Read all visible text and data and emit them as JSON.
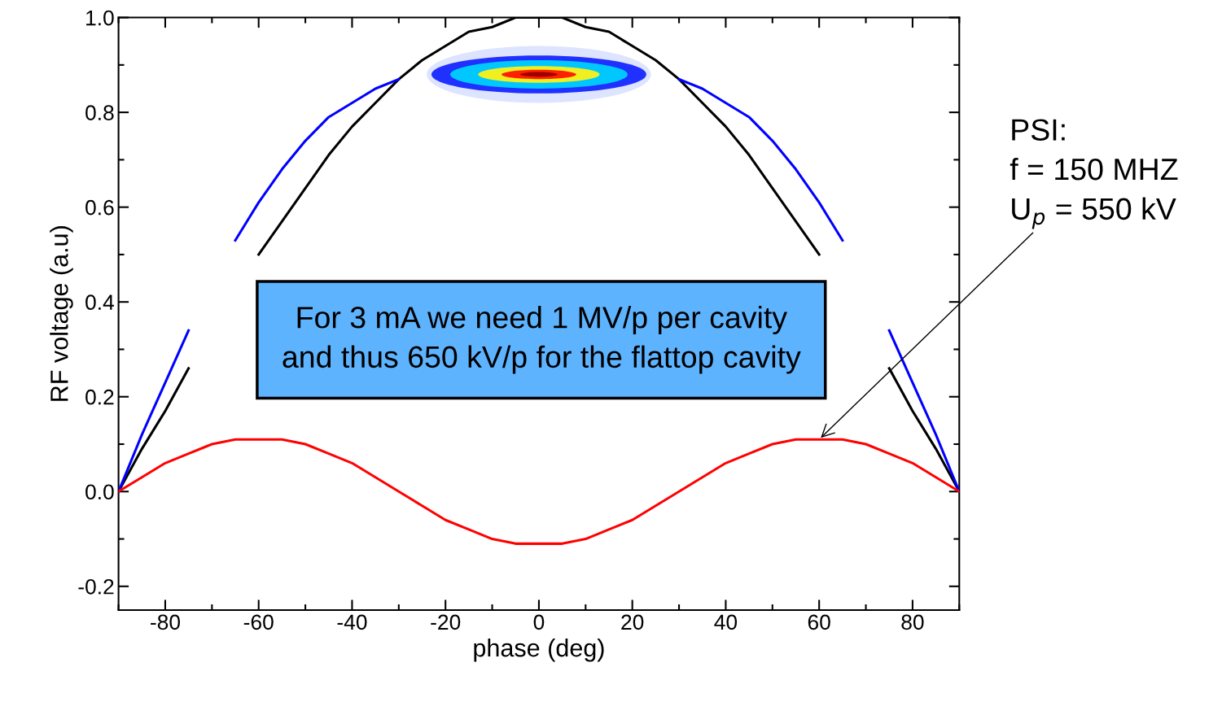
{
  "chart_data": {
    "type": "line",
    "xlabel": "phase (deg)",
    "ylabel": "RF voltage (a.u)",
    "x": [
      -90,
      -85,
      -80,
      -75,
      -70,
      -65,
      -60,
      -55,
      -50,
      -45,
      -40,
      -35,
      -30,
      -25,
      -20,
      -15,
      -10,
      -5,
      0,
      5,
      10,
      15,
      20,
      25,
      30,
      35,
      40,
      45,
      50,
      55,
      60,
      65,
      70,
      75,
      80,
      85,
      90
    ],
    "series": [
      {
        "color": "#000000",
        "values": [
          0,
          0.09,
          0.17,
          0.26,
          null,
          null,
          0.5,
          0.57,
          0.64,
          0.71,
          0.77,
          0.82,
          0.87,
          0.91,
          0.94,
          0.97,
          0.98,
          1.0,
          1.0,
          1.0,
          0.98,
          0.97,
          0.94,
          0.91,
          0.87,
          0.82,
          0.77,
          0.71,
          0.64,
          0.57,
          0.5,
          null,
          null,
          0.26,
          0.17,
          0.09,
          0
        ]
      },
      {
        "color": "#0000ff",
        "values": [
          0,
          0.12,
          0.23,
          0.34,
          null,
          0.53,
          0.61,
          0.68,
          0.74,
          0.79,
          0.82,
          0.85,
          0.87,
          null,
          null,
          null,
          null,
          null,
          null,
          null,
          null,
          null,
          null,
          null,
          0.87,
          0.85,
          0.82,
          0.79,
          0.74,
          0.68,
          0.61,
          0.53,
          null,
          0.34,
          0.23,
          0.12,
          0
        ]
      },
      {
        "color": "#ff0000",
        "values": [
          0,
          0.03,
          0.06,
          0.08,
          0.1,
          0.11,
          0.11,
          0.11,
          0.1,
          0.08,
          0.06,
          0.03,
          0,
          -0.03,
          -0.06,
          -0.08,
          -0.1,
          -0.11,
          -0.11,
          -0.11,
          -0.1,
          -0.08,
          -0.06,
          -0.03,
          0,
          0.03,
          0.06,
          0.08,
          0.1,
          0.11,
          0.11,
          0.11,
          0.1,
          0.08,
          0.06,
          0.03,
          0
        ]
      }
    ],
    "xlim": [
      -90,
      90
    ],
    "ylim": [
      -0.25,
      1.0
    ],
    "xticks": [
      -80,
      -60,
      -40,
      -20,
      0,
      20,
      40,
      60,
      80
    ],
    "yticks": [
      {
        "value": -0.2,
        "label": "-0.2"
      },
      {
        "value": 0,
        "label": "0.0"
      },
      {
        "value": 0.2,
        "label": "0.2"
      },
      {
        "value": 0.4,
        "label": "0.4"
      },
      {
        "value": 0.6,
        "label": "0.6"
      },
      {
        "value": 0.8,
        "label": "0.8"
      },
      {
        "value": 1.0,
        "label": "1.0"
      }
    ],
    "grid": false,
    "legend": false,
    "marker": "none",
    "line_style": "solid",
    "annotations": [
      "For 3 mA we need 1 MV/p per cavity\nand thus 650 kV/p for the flattop cavity",
      {
        "text": "PSI:\nf = 150 MHZ\nU$_{p}$ = 550 kV",
        "x": 60,
        "y": 0.11
      }
    ]
  }
}
